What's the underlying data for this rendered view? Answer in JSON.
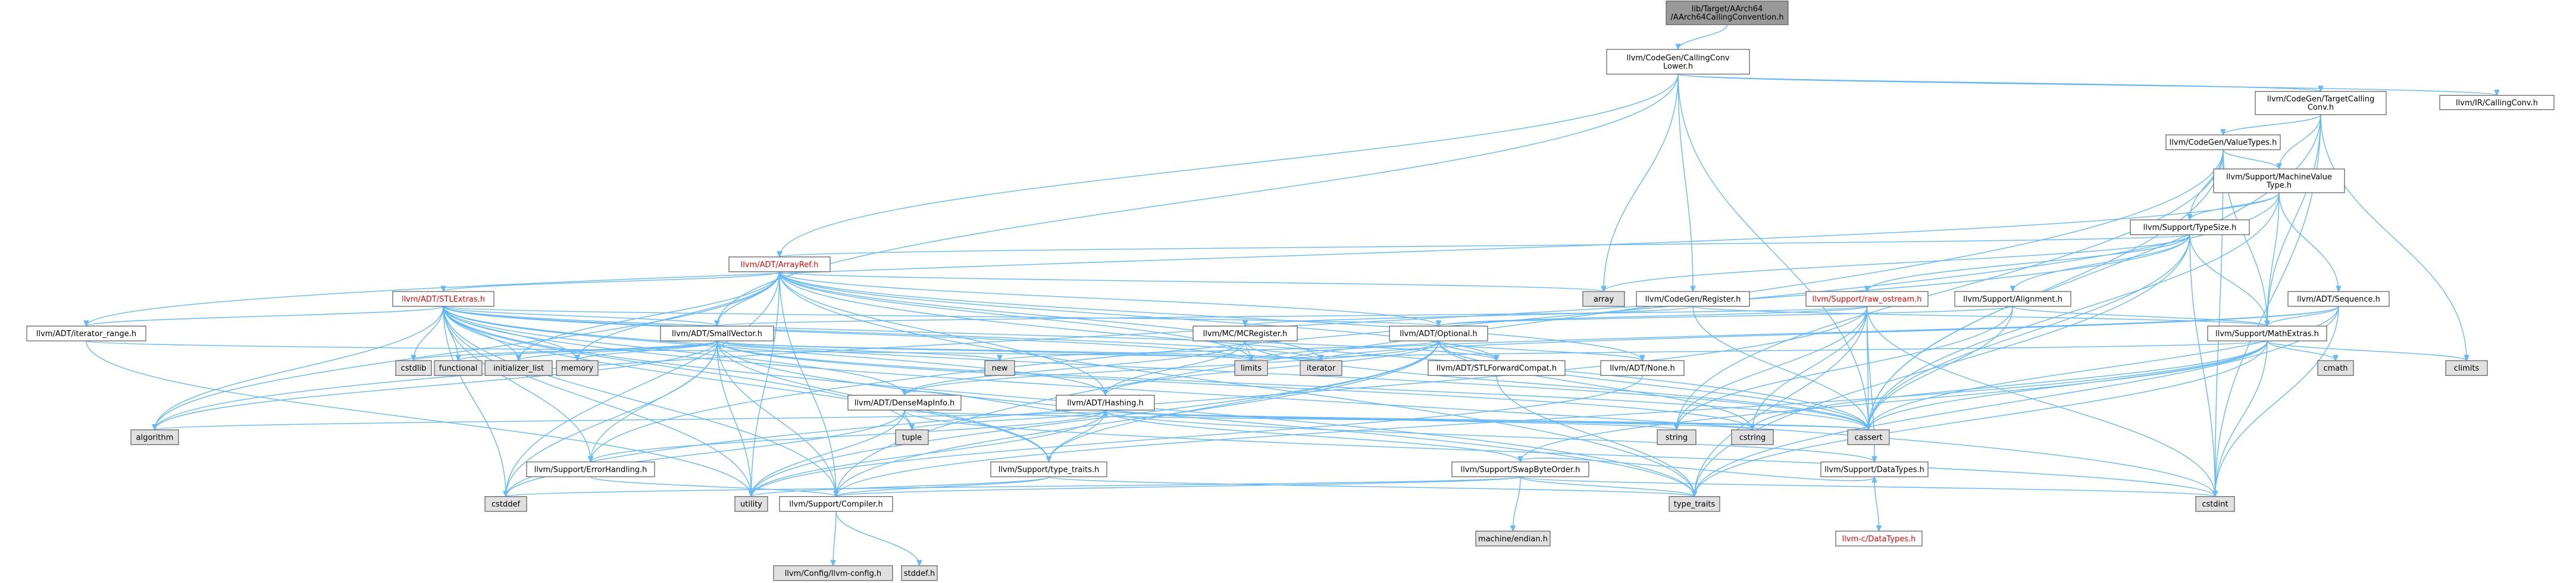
{
  "colors": {
    "edge": "#63b8ff",
    "root_fill": "#999999",
    "node_fill": "#ffffff",
    "system_fill": "#e0e0e0",
    "node_stroke": "#666666",
    "incomplete_text": "#ff0000"
  },
  "nodes": [
    {
      "id": "root",
      "lines": [
        "lib/Target/AArch64",
        "/AArch64CallingConvention.h"
      ],
      "kind": "root"
    },
    {
      "id": "ccl",
      "lines": [
        "llvm/CodeGen/CallingConv",
        "Lower.h"
      ],
      "kind": "node"
    },
    {
      "id": "tcc",
      "lines": [
        "llvm/CodeGen/TargetCalling",
        "Conv.h"
      ],
      "kind": "node"
    },
    {
      "id": "irc",
      "lines": [
        "llvm/IR/CallingConv.h"
      ],
      "kind": "node"
    },
    {
      "id": "cvt",
      "lines": [
        "llvm/CodeGen/ValueTypes.h"
      ],
      "kind": "node"
    },
    {
      "id": "mvt",
      "lines": [
        "llvm/Support/MachineValue",
        "Type.h"
      ],
      "kind": "node"
    },
    {
      "id": "ts",
      "lines": [
        "llvm/Support/TypeSize.h"
      ],
      "kind": "node"
    },
    {
      "id": "ar",
      "lines": [
        "llvm/ADT/ArrayRef.h"
      ],
      "kind": "red"
    },
    {
      "id": "stl",
      "lines": [
        "llvm/ADT/STLExtras.h"
      ],
      "kind": "red"
    },
    {
      "id": "array",
      "lines": [
        "array"
      ],
      "kind": "sys"
    },
    {
      "id": "reg",
      "lines": [
        "llvm/CodeGen/Register.h"
      ],
      "kind": "node"
    },
    {
      "id": "rawos",
      "lines": [
        "llvm/Support/raw_ostream.h"
      ],
      "kind": "red"
    },
    {
      "id": "align",
      "lines": [
        "llvm/Support/Alignment.h"
      ],
      "kind": "node"
    },
    {
      "id": "seq",
      "lines": [
        "llvm/ADT/Sequence.h"
      ],
      "kind": "node"
    },
    {
      "id": "itr",
      "lines": [
        "llvm/ADT/iterator_range.h"
      ],
      "kind": "node"
    },
    {
      "id": "sv",
      "lines": [
        "llvm/ADT/SmallVector.h"
      ],
      "kind": "node"
    },
    {
      "id": "mcreg",
      "lines": [
        "llvm/MC/MCRegister.h"
      ],
      "kind": "node"
    },
    {
      "id": "opt",
      "lines": [
        "llvm/ADT/Optional.h"
      ],
      "kind": "node"
    },
    {
      "id": "me",
      "lines": [
        "llvm/Support/MathExtras.h"
      ],
      "kind": "node"
    },
    {
      "id": "cstdlib",
      "lines": [
        "cstdlib"
      ],
      "kind": "sys"
    },
    {
      "id": "functional",
      "lines": [
        "functional"
      ],
      "kind": "sys"
    },
    {
      "id": "il",
      "lines": [
        "initializer_list"
      ],
      "kind": "sys"
    },
    {
      "id": "memory",
      "lines": [
        "memory"
      ],
      "kind": "sys"
    },
    {
      "id": "new",
      "lines": [
        "new"
      ],
      "kind": "sys"
    },
    {
      "id": "limits",
      "lines": [
        "limits"
      ],
      "kind": "sys"
    },
    {
      "id": "iterator",
      "lines": [
        "iterator"
      ],
      "kind": "sys"
    },
    {
      "id": "stlfc",
      "lines": [
        "llvm/ADT/STLForwardCompat.h"
      ],
      "kind": "node"
    },
    {
      "id": "none",
      "lines": [
        "llvm/ADT/None.h"
      ],
      "kind": "node"
    },
    {
      "id": "cmath",
      "lines": [
        "cmath"
      ],
      "kind": "sys"
    },
    {
      "id": "climits",
      "lines": [
        "climits"
      ],
      "kind": "sys"
    },
    {
      "id": "dmi",
      "lines": [
        "llvm/ADT/DenseMapInfo.h"
      ],
      "kind": "node"
    },
    {
      "id": "hash",
      "lines": [
        "llvm/ADT/Hashing.h"
      ],
      "kind": "node"
    },
    {
      "id": "algorithm",
      "lines": [
        "algorithm"
      ],
      "kind": "sys"
    },
    {
      "id": "tuple",
      "lines": [
        "tuple"
      ],
      "kind": "sys"
    },
    {
      "id": "string",
      "lines": [
        "string"
      ],
      "kind": "sys"
    },
    {
      "id": "cstring",
      "lines": [
        "cstring"
      ],
      "kind": "sys"
    },
    {
      "id": "cassert",
      "lines": [
        "cassert"
      ],
      "kind": "sys"
    },
    {
      "id": "eh",
      "lines": [
        "llvm/Support/ErrorHandling.h"
      ],
      "kind": "node"
    },
    {
      "id": "stt",
      "lines": [
        "llvm/Support/type_traits.h"
      ],
      "kind": "node"
    },
    {
      "id": "sbo",
      "lines": [
        "llvm/Support/SwapByteOrder.h"
      ],
      "kind": "node"
    },
    {
      "id": "dt",
      "lines": [
        "llvm/Support/DataTypes.h"
      ],
      "kind": "node"
    },
    {
      "id": "cstddef",
      "lines": [
        "cstddef"
      ],
      "kind": "sys"
    },
    {
      "id": "utility",
      "lines": [
        "utility"
      ],
      "kind": "sys"
    },
    {
      "id": "comp",
      "lines": [
        "llvm/Support/Compiler.h"
      ],
      "kind": "node"
    },
    {
      "id": "tt",
      "lines": [
        "type_traits"
      ],
      "kind": "sys"
    },
    {
      "id": "cstdint",
      "lines": [
        "cstdint"
      ],
      "kind": "sys"
    },
    {
      "id": "mendian",
      "lines": [
        "machine/endian.h"
      ],
      "kind": "sys"
    },
    {
      "id": "cdt",
      "lines": [
        "llvm-c/DataTypes.h"
      ],
      "kind": "red"
    },
    {
      "id": "cfg",
      "lines": [
        "llvm/Config/llvm-config.h"
      ],
      "kind": "sys"
    },
    {
      "id": "stddef",
      "lines": [
        "stddef.h"
      ],
      "kind": "sys"
    }
  ],
  "edges": [
    [
      "root",
      "ccl"
    ],
    [
      "ccl",
      "tcc"
    ],
    [
      "ccl",
      "irc"
    ],
    [
      "ccl",
      "sv"
    ],
    [
      "ccl",
      "array"
    ],
    [
      "ccl",
      "reg"
    ],
    [
      "ccl",
      "cassert"
    ],
    [
      "ccl",
      "ar"
    ],
    [
      "tcc",
      "cvt"
    ],
    [
      "tcc",
      "mvt"
    ],
    [
      "tcc",
      "me"
    ],
    [
      "tcc",
      "cassert"
    ],
    [
      "tcc",
      "climits"
    ],
    [
      "tcc",
      "cstdint"
    ],
    [
      "cvt",
      "mvt"
    ],
    [
      "cvt",
      "ts"
    ],
    [
      "cvt",
      "me"
    ],
    [
      "cvt",
      "cassert"
    ],
    [
      "cvt",
      "cstdint"
    ],
    [
      "cvt",
      "string"
    ],
    [
      "cvt",
      "comp"
    ],
    [
      "mvt",
      "ts"
    ],
    [
      "mvt",
      "me"
    ],
    [
      "mvt",
      "seq"
    ],
    [
      "mvt",
      "eh"
    ],
    [
      "mvt",
      "cassert"
    ],
    [
      "mvt",
      "itr"
    ],
    [
      "ts",
      "ar"
    ],
    [
      "ts",
      "me"
    ],
    [
      "ts",
      "rawos"
    ],
    [
      "ts",
      "align"
    ],
    [
      "ts",
      "algorithm"
    ],
    [
      "ts",
      "cassert"
    ],
    [
      "ts",
      "cstdint"
    ],
    [
      "ts",
      "tt"
    ],
    [
      "ts",
      "array"
    ],
    [
      "ar",
      "stl"
    ],
    [
      "ar",
      "sv"
    ],
    [
      "ar",
      "hash"
    ],
    [
      "ar",
      "opt"
    ],
    [
      "ar",
      "array"
    ],
    [
      "ar",
      "cassert"
    ],
    [
      "ar",
      "cstddef"
    ],
    [
      "ar",
      "il"
    ],
    [
      "ar",
      "iterator"
    ],
    [
      "ar",
      "memory"
    ],
    [
      "ar",
      "tt"
    ],
    [
      "ar",
      "comp"
    ],
    [
      "ar",
      "algorithm"
    ],
    [
      "ar",
      "none"
    ],
    [
      "ar",
      "stlfc"
    ],
    [
      "ar",
      "utility"
    ],
    [
      "ar",
      "limits"
    ],
    [
      "stl",
      "itr"
    ],
    [
      "stl",
      "sv"
    ],
    [
      "stl",
      "opt"
    ],
    [
      "stl",
      "algorithm"
    ],
    [
      "stl",
      "cassert"
    ],
    [
      "stl",
      "cstddef"
    ],
    [
      "stl",
      "cstdint"
    ],
    [
      "stl",
      "cstdlib"
    ],
    [
      "stl",
      "functional"
    ],
    [
      "stl",
      "il"
    ],
    [
      "stl",
      "iterator"
    ],
    [
      "stl",
      "limits"
    ],
    [
      "stl",
      "memory"
    ],
    [
      "stl",
      "tuple"
    ],
    [
      "stl",
      "tt"
    ],
    [
      "stl",
      "utility"
    ],
    [
      "stl",
      "comp"
    ],
    [
      "stl",
      "eh"
    ],
    [
      "stl",
      "stt"
    ],
    [
      "stl",
      "stlfc"
    ],
    [
      "stl",
      "hash"
    ],
    [
      "stl",
      "dmi"
    ],
    [
      "reg",
      "mcreg"
    ],
    [
      "reg",
      "me"
    ],
    [
      "reg",
      "cassert"
    ],
    [
      "rawos",
      "opt"
    ],
    [
      "rawos",
      "dt"
    ],
    [
      "rawos",
      "cassert"
    ],
    [
      "rawos",
      "cstddef"
    ],
    [
      "rawos",
      "cstdint"
    ],
    [
      "rawos",
      "cstring"
    ],
    [
      "rawos",
      "string"
    ],
    [
      "rawos",
      "tt"
    ],
    [
      "rawos",
      "sv"
    ],
    [
      "align",
      "me"
    ],
    [
      "align",
      "cassert"
    ],
    [
      "align",
      "opt"
    ],
    [
      "align",
      "string"
    ],
    [
      "seq",
      "me"
    ],
    [
      "seq",
      "cassert"
    ],
    [
      "seq",
      "iterator"
    ],
    [
      "seq",
      "limits"
    ],
    [
      "seq",
      "tt"
    ],
    [
      "seq",
      "cstdint"
    ],
    [
      "itr",
      "utility"
    ],
    [
      "itr",
      "iterator"
    ],
    [
      "sv",
      "comp"
    ],
    [
      "sv",
      "algorithm"
    ],
    [
      "sv",
      "cassert"
    ],
    [
      "sv",
      "cstddef"
    ],
    [
      "sv",
      "cstdlib"
    ],
    [
      "sv",
      "cstring"
    ],
    [
      "sv",
      "functional"
    ],
    [
      "sv",
      "il"
    ],
    [
      "sv",
      "iterator"
    ],
    [
      "sv",
      "limits"
    ],
    [
      "sv",
      "memory"
    ],
    [
      "sv",
      "new"
    ],
    [
      "sv",
      "tt"
    ],
    [
      "sv",
      "utility"
    ],
    [
      "sv",
      "stt"
    ],
    [
      "sv",
      "eh"
    ],
    [
      "mcreg",
      "dmi"
    ],
    [
      "mcreg",
      "hash"
    ],
    [
      "mcreg",
      "cassert"
    ],
    [
      "mcreg",
      "limits"
    ],
    [
      "opt",
      "none"
    ],
    [
      "opt",
      "stlfc"
    ],
    [
      "opt",
      "hash"
    ],
    [
      "opt",
      "dmi"
    ],
    [
      "opt",
      "comp"
    ],
    [
      "opt",
      "stt"
    ],
    [
      "opt",
      "cassert"
    ],
    [
      "opt",
      "cstring"
    ],
    [
      "opt",
      "new"
    ],
    [
      "opt",
      "utility"
    ],
    [
      "me",
      "comp"
    ],
    [
      "me",
      "cassert"
    ],
    [
      "me",
      "climits"
    ],
    [
      "me",
      "cmath"
    ],
    [
      "me",
      "cstdint"
    ],
    [
      "me",
      "cstring"
    ],
    [
      "me",
      "limits"
    ],
    [
      "me",
      "tt"
    ],
    [
      "me",
      "sbo"
    ],
    [
      "stlfc",
      "tt"
    ],
    [
      "none",
      "utility"
    ],
    [
      "dmi",
      "hash"
    ],
    [
      "dmi",
      "cassert"
    ],
    [
      "dmi",
      "cstddef"
    ],
    [
      "dmi",
      "cstdint"
    ],
    [
      "dmi",
      "tuple"
    ],
    [
      "dmi",
      "utility"
    ],
    [
      "hash",
      "eh"
    ],
    [
      "hash",
      "dt"
    ],
    [
      "hash",
      "sbo"
    ],
    [
      "hash",
      "stt"
    ],
    [
      "hash",
      "algorithm"
    ],
    [
      "hash",
      "cassert"
    ],
    [
      "hash",
      "cstring"
    ],
    [
      "hash",
      "string"
    ],
    [
      "hash",
      "tuple"
    ],
    [
      "hash",
      "utility"
    ],
    [
      "eh",
      "comp"
    ],
    [
      "stt",
      "comp"
    ],
    [
      "stt",
      "tt"
    ],
    [
      "stt",
      "utility"
    ],
    [
      "sbo",
      "comp"
    ],
    [
      "sbo",
      "dt"
    ],
    [
      "sbo",
      "cstddef"
    ],
    [
      "sbo",
      "cstdint"
    ],
    [
      "sbo",
      "tt"
    ],
    [
      "sbo",
      "mendian"
    ],
    [
      "dt",
      "cdt"
    ],
    [
      "comp",
      "cfg"
    ],
    [
      "comp",
      "stddef"
    ]
  ]
}
